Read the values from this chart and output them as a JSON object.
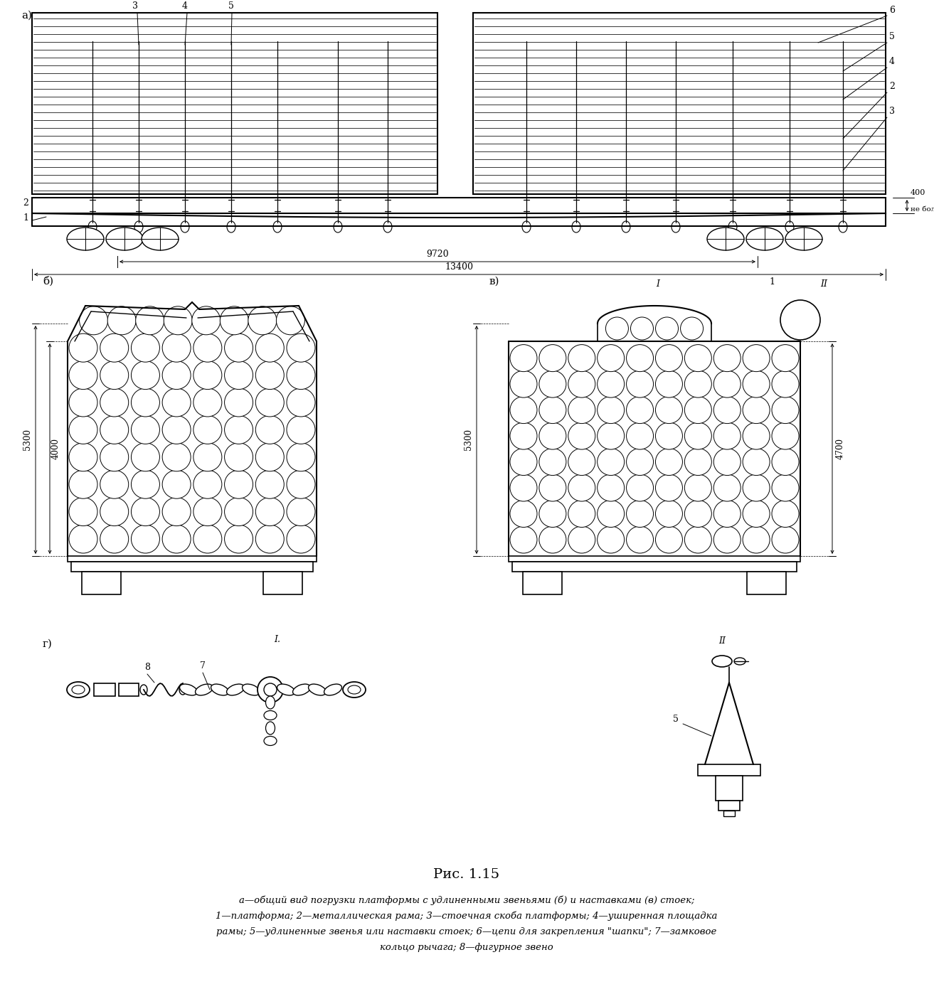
{
  "title": "Рис. 1.15",
  "caption_line1": "а—общий вид погрузки платформы с удлиненными звеньями (б) и наставками (в) стоек;",
  "caption_line2": "1—платформа; 2—металлическая рама; 3—стоечная скоба платформы; 4—уширенная площадка",
  "caption_line3": "рамы; 5—удлиненные звенья или наставки стоек; 6—цепи для закрепления \"шапки\"; 7—замковое",
  "caption_line4": "кольцо рычага; 8—фигурное звено",
  "bg_color": "#ffffff"
}
